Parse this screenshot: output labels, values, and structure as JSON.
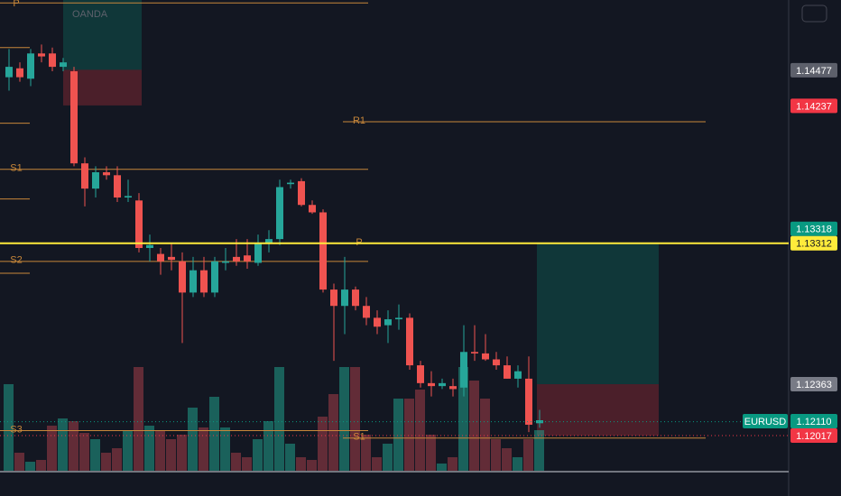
{
  "chart_data": {
    "type": "candlestick",
    "watermark": "OANDA",
    "symbol": "EURUSD",
    "ylim": [
      1.1178,
      1.1495
    ],
    "up_color": "#26a69a",
    "down_color": "#ef5350",
    "pivot_color": "#c8873a",
    "open": [
      1.1443,
      1.1449,
      1.1442,
      1.1459,
      1.1459,
      1.145,
      1.1447,
      1.1385,
      1.1368,
      1.1379,
      1.1377,
      1.1362,
      1.136,
      1.1328,
      1.1324,
      1.1322,
      1.1319,
      1.1298,
      1.1313,
      1.1298,
      1.1318,
      1.1322,
      1.1323,
      1.1318,
      1.1331,
      1.1334,
      1.1371,
      1.1373,
      1.1357,
      1.1352,
      1.13,
      1.1289,
      1.13,
      1.1289,
      1.1281,
      1.1276,
      1.128,
      1.1281,
      1.1249,
      1.1237,
      1.1235,
      1.1235,
      1.1234,
      1.1258,
      1.1257,
      1.1253,
      1.1249,
      1.124,
      1.124,
      1.121
    ],
    "high": [
      1.1462,
      1.1453,
      1.1462,
      1.1465,
      1.1463,
      1.1456,
      1.145,
      1.1389,
      1.1383,
      1.1383,
      1.1383,
      1.1374,
      1.1365,
      1.1337,
      1.1328,
      1.1331,
      1.1325,
      1.1322,
      1.1322,
      1.1322,
      1.1328,
      1.1334,
      1.1334,
      1.1337,
      1.134,
      1.1374,
      1.1374,
      1.1375,
      1.136,
      1.1354,
      1.1304,
      1.1322,
      1.1302,
      1.1295,
      1.1286,
      1.1286,
      1.129,
      1.1284,
      1.1252,
      1.1245,
      1.124,
      1.124,
      1.1276,
      1.1276,
      1.127,
      1.1258,
      1.1255,
      1.1249,
      1.1255,
      1.1219
    ],
    "low": [
      1.1434,
      1.144,
      1.1437,
      1.1453,
      1.1447,
      1.1447,
      1.1383,
      1.1356,
      1.1362,
      1.1374,
      1.1359,
      1.1359,
      1.1325,
      1.1319,
      1.131,
      1.1313,
      1.1264,
      1.1295,
      1.1295,
      1.1295,
      1.1313,
      1.1316,
      1.1314,
      1.1316,
      1.1325,
      1.133,
      1.1368,
      1.1356,
      1.1351,
      1.1298,
      1.1252,
      1.127,
      1.1286,
      1.1276,
      1.127,
      1.1264,
      1.1273,
      1.1246,
      1.1234,
      1.1228,
      1.1233,
      1.1228,
      1.1228,
      1.1252,
      1.1252,
      1.1246,
      1.124,
      1.1234,
      1.1204,
      1.1207
    ],
    "close": [
      1.145,
      1.1443,
      1.1459,
      1.1457,
      1.145,
      1.1453,
      1.1385,
      1.1368,
      1.1379,
      1.1377,
      1.1362,
      1.1363,
      1.1328,
      1.133,
      1.1319,
      1.132,
      1.1298,
      1.1313,
      1.1298,
      1.1319,
      1.1319,
      1.1319,
      1.1319,
      1.1331,
      1.1334,
      1.1369,
      1.1372,
      1.1357,
      1.1352,
      1.13,
      1.1289,
      1.13,
      1.1289,
      1.1281,
      1.1275,
      1.128,
      1.1281,
      1.1249,
      1.1237,
      1.1235,
      1.1237,
      1.1233,
      1.1258,
      1.1257,
      1.1253,
      1.1249,
      1.124,
      1.1245,
      1.1209,
      1.1212
    ],
    "volume": [
      96,
      20,
      10,
      12,
      50,
      58,
      55,
      42,
      35,
      20,
      25,
      45,
      115,
      50,
      45,
      35,
      40,
      70,
      48,
      82,
      48,
      20,
      15,
      35,
      55,
      115,
      30,
      15,
      12,
      60,
      85,
      115,
      115,
      40,
      15,
      30,
      80,
      80,
      90,
      40,
      8,
      15,
      115,
      100,
      80,
      35,
      25,
      15,
      35,
      45
    ],
    "pivots_older": [
      1.1463,
      1.1412,
      1.1361,
      1.1311
    ],
    "pivots_previous": [
      {
        "label": "P",
        "value": 1.1493
      },
      {
        "label": "S1",
        "value": 1.1381
      },
      {
        "label": "S2",
        "value": 1.1319
      },
      {
        "label": "S3",
        "value": 1.1205
      }
    ],
    "pivots_current": [
      {
        "label": "R1",
        "value": 1.1413
      },
      {
        "label": "P",
        "value": 1.1331
      },
      {
        "label": "S1",
        "value": 1.12
      }
    ],
    "positions": [
      {
        "top": 1.1495,
        "entry": 1.1448,
        "stop": 1.1424
      },
      {
        "top": 1.13312,
        "entry": 1.12363,
        "stop": 1.12017
      }
    ],
    "price_labels": [
      {
        "value": 1.14477,
        "label": "1.14477",
        "color": "#5d606b"
      },
      {
        "value": 1.14237,
        "label": "1.14237",
        "color": "#f23645"
      },
      {
        "value": 1.13318,
        "label": "1.13318",
        "color": "#089981"
      },
      {
        "value": 1.13312,
        "label": "1.13312",
        "color": "#ffeb3b",
        "line": "solid"
      },
      {
        "value": 1.12363,
        "label": "1.12363",
        "color": "#787b86"
      },
      {
        "value": 1.1211,
        "label": "1.12110",
        "color": "#089981",
        "line": "dotted"
      },
      {
        "value": 1.12017,
        "label": "1.12017",
        "color": "#f23645",
        "line": "dotted"
      }
    ]
  }
}
